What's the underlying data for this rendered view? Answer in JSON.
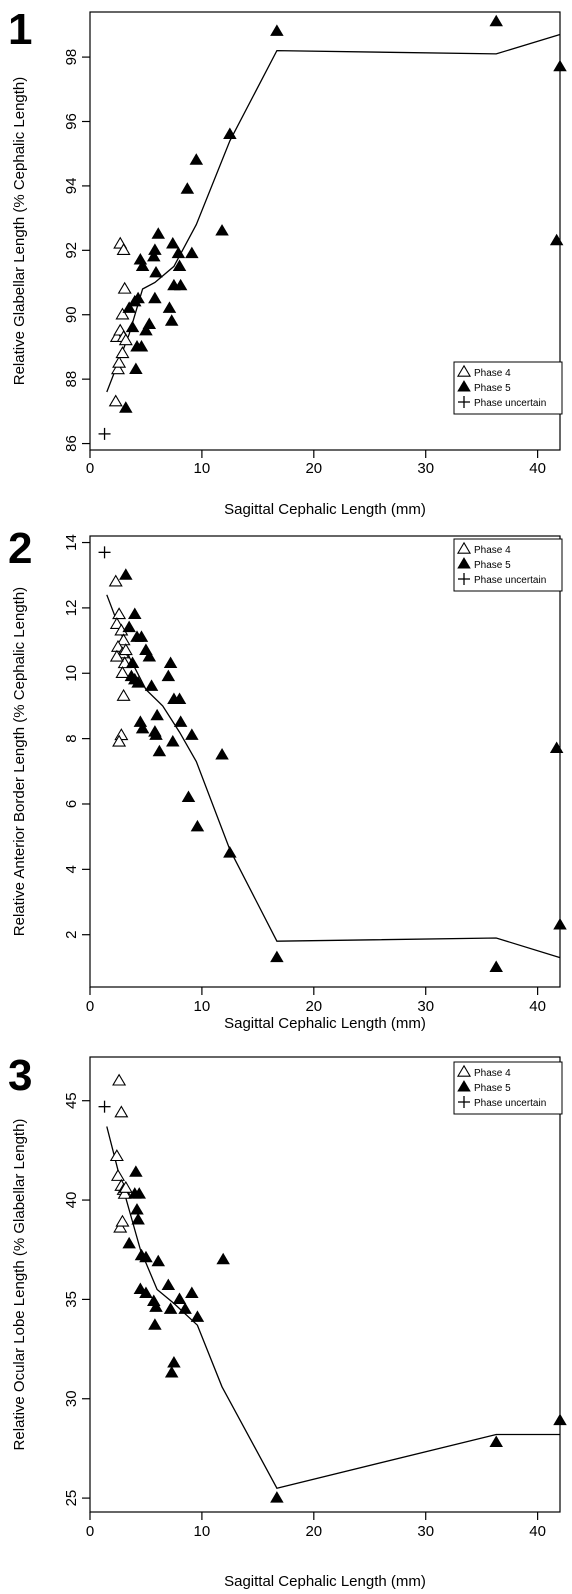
{
  "chart_data": [
    {
      "type": "scatter",
      "panel_label": "1",
      "xlabel": "Sagittal Cephalic Length (mm)",
      "ylabel": "Relative Glabellar Length (% Cephalic Length)",
      "xlim": [
        0,
        42
      ],
      "ylim": [
        85.8,
        99.4
      ],
      "xticks": [
        0,
        10,
        20,
        30,
        40
      ],
      "yticks": [
        86,
        88,
        90,
        92,
        94,
        96,
        98
      ],
      "legend_position": "bottom-right",
      "legend": [
        "Phase 4",
        "Phase 5",
        "Phase uncertain"
      ],
      "series": [
        {
          "name": "Phase 4",
          "marker": "open-triangle",
          "points": [
            [
              2.3,
              87.3
            ],
            [
              2.5,
              88.3
            ],
            [
              2.6,
              88.5
            ],
            [
              2.4,
              89.3
            ],
            [
              2.7,
              89.5
            ],
            [
              3.0,
              89.3
            ],
            [
              2.9,
              90.0
            ],
            [
              3.1,
              90.8
            ],
            [
              2.7,
              92.2
            ],
            [
              3.0,
              92.0
            ],
            [
              2.9,
              88.8
            ],
            [
              3.2,
              89.2
            ]
          ]
        },
        {
          "name": "Phase 5",
          "marker": "filled-triangle",
          "points": [
            [
              3.2,
              87.1
            ],
            [
              3.5,
              90.2
            ],
            [
              3.8,
              89.6
            ],
            [
              4.0,
              90.4
            ],
            [
              4.3,
              90.5
            ],
            [
              4.2,
              89.0
            ],
            [
              4.1,
              88.3
            ],
            [
              4.6,
              89.0
            ],
            [
              4.5,
              91.7
            ],
            [
              4.7,
              91.5
            ],
            [
              5.0,
              89.5
            ],
            [
              5.3,
              89.7
            ],
            [
              5.8,
              90.5
            ],
            [
              5.9,
              91.3
            ],
            [
              5.7,
              91.8
            ],
            [
              5.8,
              92.0
            ],
            [
              6.1,
              92.5
            ],
            [
              7.1,
              90.2
            ],
            [
              7.3,
              89.8
            ],
            [
              7.5,
              90.9
            ],
            [
              7.4,
              92.2
            ],
            [
              8.0,
              91.5
            ],
            [
              8.1,
              90.9
            ],
            [
              7.9,
              91.9
            ],
            [
              9.1,
              91.9
            ],
            [
              8.7,
              93.9
            ],
            [
              9.5,
              94.8
            ],
            [
              11.8,
              92.6
            ],
            [
              12.5,
              95.6
            ],
            [
              16.7,
              98.8
            ],
            [
              36.3,
              99.1
            ],
            [
              41.7,
              92.3
            ],
            [
              42.0,
              97.7
            ]
          ]
        },
        {
          "name": "Phase uncertain",
          "marker": "plus",
          "points": [
            [
              1.3,
              86.3
            ]
          ]
        }
      ],
      "trend_line": [
        [
          1.5,
          87.6
        ],
        [
          2.5,
          88.5
        ],
        [
          3.5,
          89.4
        ],
        [
          4.7,
          90.8
        ],
        [
          5.8,
          91.0
        ],
        [
          7.5,
          91.5
        ],
        [
          9.5,
          92.8
        ],
        [
          12.5,
          95.4
        ],
        [
          16.7,
          98.2
        ],
        [
          36.3,
          98.1
        ],
        [
          42.0,
          98.7
        ]
      ]
    },
    {
      "type": "scatter",
      "panel_label": "2",
      "xlabel": "Sagittal Cephalic Length (mm)",
      "ylabel": "Relative Anterior Border Length (% Cephalic Length)",
      "xlim": [
        0,
        42
      ],
      "ylim": [
        0.4,
        14.2
      ],
      "xticks": [
        0,
        10,
        20,
        30,
        40
      ],
      "yticks": [
        2,
        4,
        6,
        8,
        10,
        12,
        14
      ],
      "legend_position": "top-right",
      "legend": [
        "Phase 4",
        "Phase 5",
        "Phase uncertain"
      ],
      "series": [
        {
          "name": "Phase 4",
          "marker": "open-triangle",
          "points": [
            [
              2.3,
              12.8
            ],
            [
              2.6,
              11.8
            ],
            [
              2.4,
              11.5
            ],
            [
              2.8,
              11.3
            ],
            [
              3.0,
              11.0
            ],
            [
              2.5,
              10.8
            ],
            [
              2.9,
              10.6
            ],
            [
              3.1,
              10.3
            ],
            [
              2.9,
              10.0
            ],
            [
              3.2,
              10.7
            ],
            [
              3.0,
              9.3
            ],
            [
              2.8,
              8.1
            ],
            [
              2.6,
              7.9
            ],
            [
              2.4,
              10.5
            ]
          ]
        },
        {
          "name": "Phase 5",
          "marker": "filled-triangle",
          "points": [
            [
              3.2,
              13.0
            ],
            [
              3.5,
              11.4
            ],
            [
              4.0,
              11.8
            ],
            [
              4.2,
              11.1
            ],
            [
              4.6,
              11.1
            ],
            [
              5.0,
              10.7
            ],
            [
              5.3,
              10.5
            ],
            [
              3.8,
              10.3
            ],
            [
              4.0,
              9.8
            ],
            [
              4.3,
              9.7
            ],
            [
              3.7,
              9.9
            ],
            [
              4.5,
              8.5
            ],
            [
              4.7,
              8.3
            ],
            [
              5.5,
              9.6
            ],
            [
              6.0,
              8.7
            ],
            [
              5.8,
              8.2
            ],
            [
              5.9,
              8.1
            ],
            [
              6.2,
              7.6
            ],
            [
              7.0,
              9.9
            ],
            [
              7.2,
              10.3
            ],
            [
              7.5,
              9.2
            ],
            [
              8.0,
              9.2
            ],
            [
              8.1,
              8.5
            ],
            [
              7.4,
              7.9
            ],
            [
              9.1,
              8.1
            ],
            [
              8.8,
              6.2
            ],
            [
              9.6,
              5.3
            ],
            [
              11.8,
              7.5
            ],
            [
              12.5,
              4.5
            ],
            [
              16.7,
              1.3
            ],
            [
              36.3,
              1.0
            ],
            [
              41.7,
              7.7
            ],
            [
              42.0,
              2.3
            ]
          ]
        },
        {
          "name": "Phase uncertain",
          "marker": "plus",
          "points": [
            [
              1.3,
              13.7
            ]
          ]
        }
      ],
      "trend_line": [
        [
          1.5,
          12.4
        ],
        [
          2.5,
          11.5
        ],
        [
          3.5,
          10.5
        ],
        [
          5.0,
          9.5
        ],
        [
          6.5,
          9.0
        ],
        [
          8.0,
          8.2
        ],
        [
          9.5,
          7.3
        ],
        [
          12.5,
          4.6
        ],
        [
          16.7,
          1.8
        ],
        [
          36.3,
          1.9
        ],
        [
          42.0,
          1.3
        ]
      ]
    },
    {
      "type": "scatter",
      "panel_label": "3",
      "xlabel": "Sagittal Cephalic Length (mm)",
      "ylabel": "Relative Ocular Lobe Length (% Glabellar Length)",
      "xlim": [
        0,
        42
      ],
      "ylim": [
        24.3,
        47.2
      ],
      "xticks": [
        0,
        10,
        20,
        30,
        40
      ],
      "yticks": [
        25,
        30,
        35,
        40,
        45
      ],
      "legend_position": "top-right",
      "legend": [
        "Phase 4",
        "Phase 5",
        "Phase uncertain"
      ],
      "series": [
        {
          "name": "Phase 4",
          "marker": "open-triangle",
          "points": [
            [
              2.6,
              46.0
            ],
            [
              2.8,
              44.4
            ],
            [
              2.4,
              42.2
            ],
            [
              2.5,
              41.2
            ],
            [
              2.8,
              40.7
            ],
            [
              3.0,
              40.5
            ],
            [
              3.1,
              40.3
            ],
            [
              2.7,
              38.6
            ],
            [
              2.9,
              38.9
            ],
            [
              3.2,
              40.6
            ]
          ]
        },
        {
          "name": "Phase 5",
          "marker": "filled-triangle",
          "points": [
            [
              3.5,
              37.8
            ],
            [
              4.1,
              41.4
            ],
            [
              4.0,
              40.3
            ],
            [
              4.4,
              40.3
            ],
            [
              4.2,
              39.5
            ],
            [
              4.3,
              39.0
            ],
            [
              4.6,
              37.2
            ],
            [
              5.0,
              37.1
            ],
            [
              4.5,
              35.5
            ],
            [
              5.0,
              35.3
            ],
            [
              5.7,
              34.9
            ],
            [
              5.9,
              34.6
            ],
            [
              5.8,
              33.7
            ],
            [
              6.1,
              36.9
            ],
            [
              7.0,
              35.7
            ],
            [
              7.2,
              34.5
            ],
            [
              7.5,
              31.8
            ],
            [
              7.3,
              31.3
            ],
            [
              8.0,
              35.0
            ],
            [
              8.5,
              34.5
            ],
            [
              9.1,
              35.3
            ],
            [
              9.6,
              34.1
            ],
            [
              11.9,
              37.0
            ],
            [
              16.7,
              25.0
            ],
            [
              36.3,
              27.8
            ],
            [
              42.0,
              28.9
            ]
          ]
        },
        {
          "name": "Phase uncertain",
          "marker": "plus",
          "points": [
            [
              1.3,
              44.7
            ]
          ]
        }
      ],
      "trend_line": [
        [
          1.5,
          43.7
        ],
        [
          2.5,
          41.5
        ],
        [
          3.5,
          39.5
        ],
        [
          4.5,
          37.5
        ],
        [
          6.0,
          35.5
        ],
        [
          7.5,
          34.8
        ],
        [
          9.6,
          33.7
        ],
        [
          11.8,
          30.6
        ],
        [
          16.7,
          25.5
        ],
        [
          36.3,
          28.2
        ],
        [
          42.0,
          28.2
        ]
      ]
    }
  ]
}
